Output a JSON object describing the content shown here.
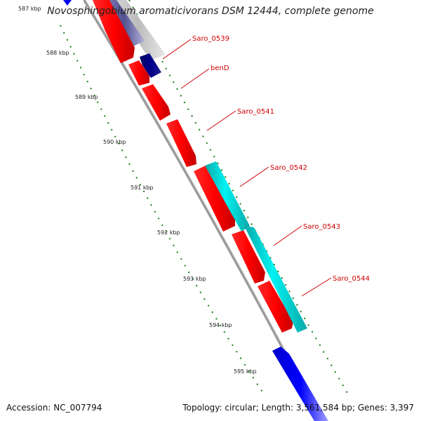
{
  "title": "Novosphingobium aromaticivorans DSM 12444, complete genome",
  "footer": {
    "accession": "Accession: NC_007794",
    "summary": "Topology: circular; Length: 3,561,584 bp; Genes: 3,397"
  },
  "ticks": [
    {
      "label": "587 kbp"
    },
    {
      "label": "588 kbp"
    },
    {
      "label": "589 kbp"
    },
    {
      "label": "590 kbp"
    },
    {
      "label": "591 kbp"
    },
    {
      "label": "592 kbp"
    },
    {
      "label": "593 kbp"
    },
    {
      "label": "594 kbp"
    },
    {
      "label": "595 kbp"
    }
  ],
  "gene_labels": [
    "Saro_0539",
    "benD",
    "Saro_0541",
    "Saro_0542",
    "Saro_0543",
    "Saro_0544"
  ],
  "colors": {
    "cds": "#ff0000",
    "tick": "#1a7a1a",
    "backbone": "#909090",
    "label": "#d00000",
    "forward_track": "#0000ee",
    "reverse_track_dark": "#000080",
    "cyan_track": "#00e0e0",
    "gray_track": "#c8c8c8"
  }
}
